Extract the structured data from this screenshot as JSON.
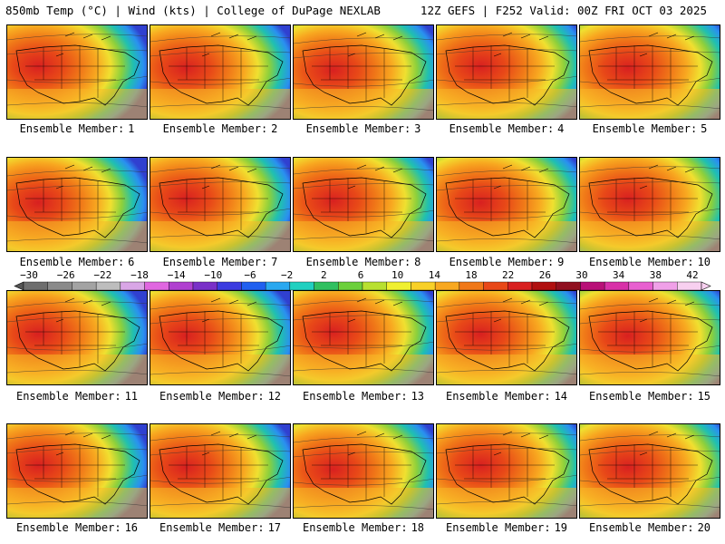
{
  "header": {
    "title_left": "850mb Temp (°C) | Wind (kts) | College of DuPage NEXLAB",
    "title_right": "12Z GEFS | F252 Valid: 00Z FRI OCT 03 2025"
  },
  "member_label_prefix": "Ensemble Member:",
  "members": [
    {
      "number": "1"
    },
    {
      "number": "2"
    },
    {
      "number": "3"
    },
    {
      "number": "4"
    },
    {
      "number": "5"
    },
    {
      "number": "6"
    },
    {
      "number": "7"
    },
    {
      "number": "8"
    },
    {
      "number": "9"
    },
    {
      "number": "10"
    },
    {
      "number": "11"
    },
    {
      "number": "12"
    },
    {
      "number": "13"
    },
    {
      "number": "14"
    },
    {
      "number": "15"
    },
    {
      "number": "16"
    },
    {
      "number": "17"
    },
    {
      "number": "18"
    },
    {
      "number": "19"
    },
    {
      "number": "20"
    }
  ],
  "colorbar": {
    "ticks": [
      "−30",
      "−26",
      "−22",
      "−18",
      "−14",
      "−10",
      "−6",
      "−2",
      "2",
      "6",
      "10",
      "14",
      "18",
      "22",
      "26",
      "30",
      "34",
      "38",
      "42"
    ],
    "colors": [
      "#6e6e6e",
      "#8a8a8a",
      "#a3a3a3",
      "#bdbdbd",
      "#d9a6e6",
      "#e066e0",
      "#b040d0",
      "#7a30c8",
      "#3c3ce0",
      "#2060f0",
      "#2aa8f0",
      "#20d0c0",
      "#30c060",
      "#6cd03c",
      "#b8e030",
      "#f0f030",
      "#f8d028",
      "#f8a820",
      "#f07818",
      "#e84818",
      "#d82020",
      "#b01010",
      "#901020",
      "#b81078",
      "#d830a8",
      "#e860d0",
      "#f0a0e8",
      "#f8d0f0"
    ]
  }
}
